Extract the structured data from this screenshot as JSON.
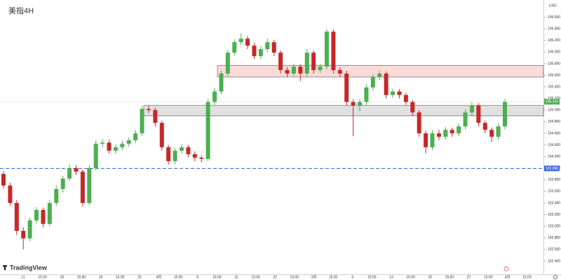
{
  "chart_data": {
    "type": "candlestick",
    "title": "美指4H",
    "currency": "USD",
    "brand": "TradingView",
    "up_color": "#4caf50",
    "down_color": "#c62828",
    "open": [
      103.9,
      103.7,
      103.4,
      102.92,
      102.79,
      103.1,
      103.28,
      103.04,
      103.4,
      103.64,
      103.82,
      104.0,
      103.94,
      103.4,
      104.0,
      104.42,
      104.44,
      104.3,
      104.36,
      104.42,
      104.48,
      104.6,
      105.02,
      105.0,
      104.78,
      104.36,
      104.12,
      104.3,
      104.36,
      104.24,
      104.18,
      104.16,
      105.14,
      105.32,
      105.63,
      105.99,
      106.17,
      106.23,
      106.11,
      105.93,
      106.05,
      106.17,
      105.99,
      105.69,
      105.63,
      105.75,
      105.63,
      105.99,
      105.69,
      105.75,
      106.35,
      105.69,
      105.63,
      105.14,
      105.08,
      105.14,
      105.39,
      105.57,
      105.63,
      105.26,
      105.32,
      105.26,
      105.14,
      104.96,
      104.6,
      104.36,
      104.6,
      104.54,
      104.66,
      104.6,
      104.72,
      104.96,
      105.08,
      104.78,
      104.66,
      104.54,
      104.72
    ],
    "high": [
      103.95,
      103.75,
      103.45,
      102.98,
      103.15,
      103.33,
      103.32,
      103.45,
      103.7,
      103.87,
      104.06,
      104.05,
      103.98,
      104.05,
      104.48,
      104.5,
      104.49,
      104.41,
      104.47,
      104.53,
      104.66,
      105.07,
      105.08,
      105.04,
      104.82,
      104.4,
      104.35,
      104.41,
      104.4,
      104.29,
      104.22,
      105.19,
      105.38,
      105.68,
      106.04,
      106.22,
      106.32,
      106.28,
      106.16,
      106.1,
      106.23,
      106.21,
      106.03,
      105.74,
      105.8,
      105.79,
      106.05,
      106.03,
      105.8,
      106.4,
      106.39,
      105.74,
      105.68,
      105.19,
      105.19,
      105.44,
      105.62,
      105.68,
      105.67,
      105.37,
      105.36,
      105.3,
      105.18,
      105.0,
      104.64,
      104.65,
      104.66,
      104.71,
      104.7,
      104.77,
      105.01,
      105.13,
      105.12,
      104.82,
      104.7,
      104.77,
      105.19
    ],
    "low": [
      103.65,
      103.35,
      102.85,
      102.6,
      102.74,
      103.05,
      102.98,
      103.0,
      103.35,
      103.58,
      103.77,
      103.88,
      103.34,
      103.36,
      103.96,
      104.36,
      104.25,
      104.25,
      104.31,
      104.37,
      104.43,
      104.56,
      104.95,
      104.72,
      104.3,
      104.06,
      104.07,
      104.25,
      104.19,
      104.12,
      104.1,
      104.12,
      105.09,
      105.27,
      105.58,
      105.94,
      106.12,
      106.05,
      105.88,
      105.88,
      106.0,
      105.93,
      105.63,
      105.57,
      105.58,
      105.5,
      105.58,
      105.63,
      105.64,
      105.7,
      105.63,
      105.57,
      105.08,
      104.55,
      104.98,
      105.09,
      105.34,
      105.52,
      105.2,
      105.21,
      105.2,
      105.09,
      104.9,
      104.54,
      104.25,
      104.31,
      104.48,
      104.49,
      104.54,
      104.55,
      104.67,
      104.91,
      104.72,
      104.6,
      104.45,
      104.49,
      104.67
    ],
    "close": [
      103.7,
      103.4,
      102.92,
      102.79,
      103.1,
      103.28,
      103.04,
      103.4,
      103.64,
      103.82,
      104.0,
      103.94,
      103.4,
      104.0,
      104.42,
      104.44,
      104.3,
      104.36,
      104.42,
      104.48,
      104.6,
      105.02,
      105.0,
      104.78,
      104.36,
      104.12,
      104.3,
      104.36,
      104.24,
      104.18,
      104.16,
      105.14,
      105.32,
      105.63,
      105.99,
      106.17,
      106.23,
      106.11,
      105.93,
      106.05,
      106.17,
      105.99,
      105.69,
      105.63,
      105.75,
      105.63,
      105.99,
      105.69,
      105.75,
      106.35,
      105.69,
      105.63,
      105.14,
      105.08,
      105.14,
      105.39,
      105.57,
      105.63,
      105.26,
      105.32,
      105.26,
      105.14,
      104.96,
      104.6,
      104.36,
      104.6,
      104.54,
      104.66,
      104.6,
      104.72,
      104.96,
      105.08,
      104.78,
      104.66,
      104.54,
      104.72,
      105.14
    ],
    "zones": [
      {
        "low": 105.57,
        "high": 105.77,
        "color": "#fbdada"
      },
      {
        "low": 104.9,
        "high": 105.08,
        "color": "#e0e0e0"
      }
    ],
    "support_line": {
      "value": 103.996,
      "color": "#3f6fd8"
    },
    "last_price": 105.144,
    "ylim": [
      102.17,
      106.8
    ],
    "yticks": [
      {
        "value": 102.4,
        "label": "102.400"
      },
      {
        "value": 102.6,
        "label": "102.600"
      },
      {
        "value": 102.8,
        "label": "102.800"
      },
      {
        "value": 103,
        "label": "103.000"
      },
      {
        "value": 103.2,
        "label": "103.200"
      },
      {
        "value": 103.4,
        "label": "103.400"
      },
      {
        "value": 103.6,
        "label": "103.600"
      },
      {
        "value": 103.8,
        "label": "103.800"
      },
      {
        "value": 104,
        "label": "104.000"
      },
      {
        "value": 104.2,
        "label": "104.200"
      },
      {
        "value": 104.4,
        "label": "104.400"
      },
      {
        "value": 104.6,
        "label": "104.600"
      },
      {
        "value": 104.8,
        "label": "104.800"
      },
      {
        "value": 105,
        "label": "105.000"
      },
      {
        "value": 105.2,
        "label": "105.200"
      },
      {
        "value": 105.4,
        "label": "105.400"
      },
      {
        "value": 105.6,
        "label": "105.600"
      },
      {
        "value": 105.8,
        "label": "105.800"
      },
      {
        "value": 106,
        "label": "106.000"
      },
      {
        "value": 106.2,
        "label": "106.200"
      },
      {
        "value": 106.4,
        "label": "106.400"
      },
      {
        "value": 106.6,
        "label": "106.600"
      }
    ],
    "time_labels": [
      "11",
      "15:00",
      "18",
      "15:00",
      "19",
      "15:00",
      "20",
      "4月",
      "15:00",
      "8",
      "15:00",
      "15",
      "15:00",
      "22",
      "15:00",
      "3月",
      "15:00",
      "6",
      "15:00",
      "13",
      "15:00",
      "20",
      "15:00",
      "27",
      "15:00",
      "4月",
      "15:00"
    ]
  }
}
